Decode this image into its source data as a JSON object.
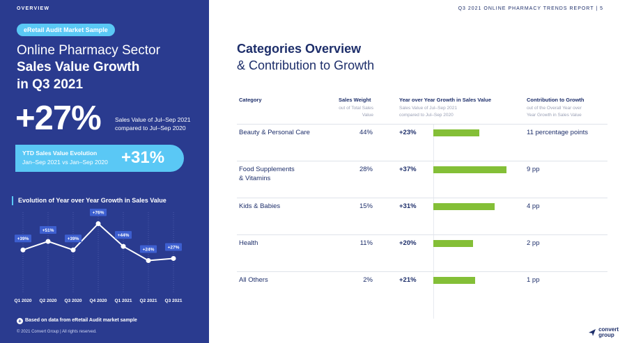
{
  "left": {
    "section_label": "OVERVIEW",
    "pill": "eRetail Audit Market Sample",
    "title_line1": "Online Pharmacy Sector",
    "title_line2": "Sales Value Growth",
    "title_line3": "in Q3 2021",
    "big_value": "+27%",
    "big_note": "Sales Value of Jul–Sep 2021 compared to Jul–Sep 2020",
    "ytd": {
      "line1": "YTD Sales Value Evolution",
      "line2": "Jan–Sep 2021 vs Jan–Sep 2020",
      "value": "+31%"
    },
    "evolution_title": "Evolution of Year over Year Growth in Sales Value",
    "note": "Based on data from eRetail Audit market sample",
    "copyright": "© 2021 Convert Group | All rights reserved."
  },
  "chart_data": {
    "type": "line",
    "title": "Evolution of Year over Year Growth in Sales Value",
    "categories": [
      "Q1 2020",
      "Q2 2020",
      "Q3 2020",
      "Q4 2020",
      "Q1 2021",
      "Q2 2021",
      "Q3 2021"
    ],
    "values": [
      39,
      51,
      39,
      76,
      44,
      24,
      27
    ],
    "labels": [
      "+39%",
      "+51%",
      "+39%",
      "+76%",
      "+44%",
      "+24%",
      "+27%"
    ]
  },
  "header": "Q3 2021 ONLINE PHARMACY TRENDS REPORT | 5",
  "categories": {
    "title": "Categories Overview",
    "subtitle": "& Contribution to Growth",
    "columns": {
      "category": "Category",
      "weight": "Sales Weight",
      "weight_sub": "out of Total Sales Value",
      "yoy": "Year over Year Growth in Sales Value",
      "yoy_sub": "Sales Value of Jul–Sep 2021 compared to Jul–Sep 2020",
      "contrib": "Contribution to Growth",
      "contrib_sub": "out of the Overall Year over Year Growth in Sales Value"
    },
    "rows": [
      {
        "category_l1": "Beauty & Personal Care",
        "category_l2": "",
        "weight": "44%",
        "growth": "+23%",
        "growth_value": 23,
        "contribution": "11 percentage points"
      },
      {
        "category_l1": "Food Supplements",
        "category_l2": "& Vitamins",
        "weight": "28%",
        "growth": "+37%",
        "growth_value": 37,
        "contribution": "9 pp"
      },
      {
        "category_l1": "Kids & Babies",
        "category_l2": "",
        "weight": "15%",
        "growth": "+31%",
        "growth_value": 31,
        "contribution": "4 pp"
      },
      {
        "category_l1": "Health",
        "category_l2": "",
        "weight": "11%",
        "growth": "+20%",
        "growth_value": 20,
        "contribution": "2 pp"
      },
      {
        "category_l1": "All Others",
        "category_l2": "",
        "weight": "2%",
        "growth": "+21%",
        "growth_value": 21,
        "contribution": "1 pp"
      }
    ]
  },
  "logo": {
    "line1": "convert",
    "line2": "group"
  }
}
